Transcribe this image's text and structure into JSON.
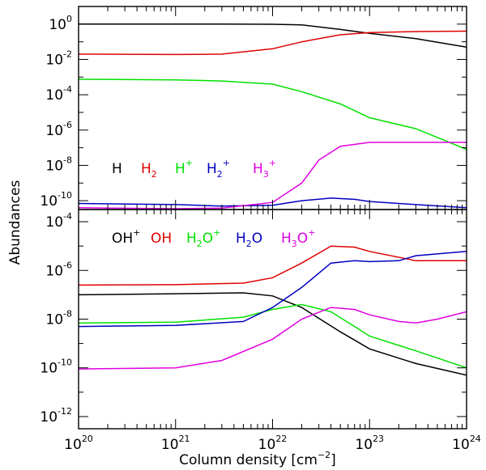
{
  "chart_data": [
    {
      "type": "line",
      "panel": "top",
      "xscale": "log",
      "yscale": "log",
      "xlim": [
        1e+20,
        1e+24
      ],
      "ylim": [
        3.16e-11,
        10
      ],
      "ylabel": "Abundances",
      "xlabel": "",
      "yticks": [
        {
          "value": 1,
          "base": "10",
          "exp": "0"
        },
        {
          "value": 0.01,
          "base": "10",
          "exp": "-2"
        },
        {
          "value": 0.0001,
          "base": "10",
          "exp": "-4"
        },
        {
          "value": 1e-06,
          "base": "10",
          "exp": "-6"
        },
        {
          "value": 1e-08,
          "base": "10",
          "exp": "-8"
        },
        {
          "value": 1e-10,
          "base": "10",
          "exp": "-10"
        }
      ],
      "legend": [
        {
          "text": "H",
          "sub": "",
          "sup": "",
          "color": "#000000"
        },
        {
          "text": "H",
          "sub": "2",
          "sup": "",
          "color": "#e00000"
        },
        {
          "text": "H",
          "sub": "",
          "sup": "+",
          "color": "#00e000"
        },
        {
          "text": "H",
          "sub": "2",
          "sup": "+",
          "color": "#0000c0"
        },
        {
          "text": "H",
          "sub": "3",
          "sup": "+",
          "color": "#e000e0"
        }
      ],
      "series": [
        {
          "name": "H",
          "color": "#000000",
          "points": [
            [
              1e+20,
              1.0
            ],
            [
              1e+21,
              1.0
            ],
            [
              3e+21,
              1.0
            ],
            [
              1e+22,
              0.98
            ],
            [
              2e+22,
              0.9
            ],
            [
              5e+22,
              0.5
            ],
            [
              1e+23,
              0.3
            ],
            [
              3e+23,
              0.15
            ],
            [
              1e+24,
              0.05
            ]
          ]
        },
        {
          "name": "H2",
          "color": "#e00000",
          "points": [
            [
              1e+20,
              0.02
            ],
            [
              1e+21,
              0.019
            ],
            [
              3e+21,
              0.02
            ],
            [
              1e+22,
              0.04
            ],
            [
              2e+22,
              0.1
            ],
            [
              5e+22,
              0.25
            ],
            [
              1e+23,
              0.33
            ],
            [
              3e+23,
              0.38
            ],
            [
              1e+24,
              0.4
            ]
          ]
        },
        {
          "name": "H+",
          "color": "#00e000",
          "points": [
            [
              1e+20,
              0.00075
            ],
            [
              1e+21,
              0.0007
            ],
            [
              3e+21,
              0.0006
            ],
            [
              1e+22,
              0.0004
            ],
            [
              2e+22,
              0.00015
            ],
            [
              5e+22,
              3e-05
            ],
            [
              1e+23,
              5e-06
            ],
            [
              3e+23,
              1.2e-06
            ],
            [
              1e+24,
              8e-08
            ]
          ]
        },
        {
          "name": "H2+",
          "color": "#0000c0",
          "points": [
            [
              1e+20,
              7e-11
            ],
            [
              1e+21,
              6e-11
            ],
            [
              3e+21,
              5e-11
            ],
            [
              1e+22,
              5.5e-11
            ],
            [
              2e+22,
              1e-10
            ],
            [
              4e+22,
              1.4e-10
            ],
            [
              7e+22,
              1.2e-10
            ],
            [
              1e+23,
              9e-11
            ],
            [
              3e+23,
              6e-11
            ],
            [
              1e+24,
              4e-11
            ]
          ]
        },
        {
          "name": "H3+",
          "color": "#e000e0",
          "points": [
            [
              1e+20,
              4e-11
            ],
            [
              1e+21,
              3.5e-11
            ],
            [
              3e+21,
              3.8e-11
            ],
            [
              1e+22,
              8e-11
            ],
            [
              2e+22,
              1e-09
            ],
            [
              3e+22,
              2e-08
            ],
            [
              5e+22,
              1.2e-07
            ],
            [
              1e+23,
              2e-07
            ],
            [
              3e+23,
              2e-07
            ],
            [
              1e+24,
              2e-07
            ]
          ]
        }
      ]
    },
    {
      "type": "line",
      "panel": "bottom",
      "xscale": "log",
      "yscale": "log",
      "xlim": [
        1e+20,
        1e+24
      ],
      "ylim": [
        3.16e-13,
        0.000316
      ],
      "ylabel": "Abundances",
      "xlabel": "Column density [cm",
      "xlabel_sup": "−2",
      "xlabel_end": "]",
      "xticks": [
        {
          "value": 1e+20,
          "base": "10",
          "exp": "20"
        },
        {
          "value": 1e+21,
          "base": "10",
          "exp": "21"
        },
        {
          "value": 1e+22,
          "base": "10",
          "exp": "22"
        },
        {
          "value": 1e+23,
          "base": "10",
          "exp": "23"
        },
        {
          "value": 1e+24,
          "base": "10",
          "exp": "24"
        }
      ],
      "yticks": [
        {
          "value": 0.0001,
          "base": "10",
          "exp": "-4"
        },
        {
          "value": 1e-06,
          "base": "10",
          "exp": "-6"
        },
        {
          "value": 1e-08,
          "base": "10",
          "exp": "-8"
        },
        {
          "value": 1e-10,
          "base": "10",
          "exp": "-10"
        },
        {
          "value": 1e-12,
          "base": "10",
          "exp": "-12"
        }
      ],
      "legend": [
        {
          "text": "OH",
          "sub": "",
          "sup": "+",
          "color": "#000000"
        },
        {
          "text": "OH",
          "sub": "",
          "sup": "",
          "color": "#e00000"
        },
        {
          "text": "H",
          "sub": "2",
          "tail": "O",
          "sup": "+",
          "color": "#00e000"
        },
        {
          "text": "H",
          "sub": "2",
          "tail": "O",
          "sup": "",
          "color": "#0000c0"
        },
        {
          "text": "H",
          "sub": "3",
          "tail": "O",
          "sup": "+",
          "color": "#e000e0"
        }
      ],
      "series": [
        {
          "name": "OH+",
          "color": "#000000",
          "points": [
            [
              1e+20,
              1e-07
            ],
            [
              1e+21,
              1.1e-07
            ],
            [
              5e+21,
              1.2e-07
            ],
            [
              1e+22,
              9e-08
            ],
            [
              2e+22,
              3e-08
            ],
            [
              5e+22,
              3e-09
            ],
            [
              1e+23,
              6e-10
            ],
            [
              3e+23,
              1.5e-10
            ],
            [
              1e+24,
              5e-11
            ]
          ]
        },
        {
          "name": "OH",
          "color": "#e00000",
          "points": [
            [
              1e+20,
              2.5e-07
            ],
            [
              1e+21,
              2.6e-07
            ],
            [
              5e+21,
              3e-07
            ],
            [
              1e+22,
              5e-07
            ],
            [
              2e+22,
              2e-06
            ],
            [
              4e+22,
              1e-05
            ],
            [
              7e+22,
              9e-06
            ],
            [
              1e+23,
              6e-06
            ],
            [
              3e+23,
              2.5e-06
            ],
            [
              1e+24,
              2.5e-06
            ]
          ]
        },
        {
          "name": "H2O+",
          "color": "#00e000",
          "points": [
            [
              1e+20,
              7e-09
            ],
            [
              1e+21,
              7.5e-09
            ],
            [
              5e+21,
              1.2e-08
            ],
            [
              1e+22,
              2.5e-08
            ],
            [
              2e+22,
              4e-08
            ],
            [
              4e+22,
              2e-08
            ],
            [
              7e+22,
              5e-09
            ],
            [
              1e+23,
              2e-09
            ],
            [
              3e+23,
              5e-10
            ],
            [
              1e+24,
              1e-10
            ]
          ]
        },
        {
          "name": "H2O",
          "color": "#0000c0",
          "points": [
            [
              1e+20,
              5e-09
            ],
            [
              1e+21,
              5.5e-09
            ],
            [
              5e+21,
              8e-09
            ],
            [
              1e+22,
              3e-08
            ],
            [
              2e+22,
              2e-07
            ],
            [
              4e+22,
              2e-06
            ],
            [
              7e+22,
              2.5e-06
            ],
            [
              1e+23,
              2.3e-06
            ],
            [
              2e+23,
              2.5e-06
            ],
            [
              3e+23,
              4e-06
            ],
            [
              1e+24,
              6e-06
            ]
          ]
        },
        {
          "name": "H3O+",
          "color": "#e000e0",
          "points": [
            [
              1e+20,
              9e-11
            ],
            [
              1e+21,
              1e-10
            ],
            [
              3e+21,
              2e-10
            ],
            [
              1e+22,
              1.5e-09
            ],
            [
              2e+22,
              1e-08
            ],
            [
              4e+22,
              3e-08
            ],
            [
              7e+22,
              2.5e-08
            ],
            [
              1e+23,
              1.5e-08
            ],
            [
              2e+23,
              8e-09
            ],
            [
              3e+23,
              7e-09
            ],
            [
              5e+23,
              1e-08
            ],
            [
              1e+24,
              2e-08
            ]
          ]
        }
      ]
    }
  ]
}
